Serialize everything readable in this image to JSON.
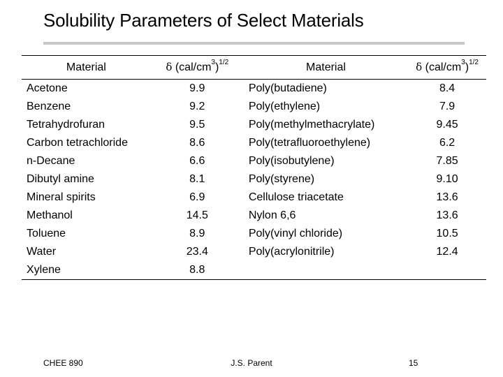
{
  "slide": {
    "title": "Solubility Parameters of Select Materials"
  },
  "table": {
    "headers": {
      "material": "Material",
      "delta_symbol": "δ",
      "units": "(cal/cm",
      "units_exp": "3",
      "units_close": ")",
      "units_power": "1/2"
    },
    "rows": [
      {
        "solvent": "Acetone",
        "solvent_delta": "9.9",
        "polymer": "Poly(butadiene)",
        "polymer_delta": "8.4"
      },
      {
        "solvent": "Benzene",
        "solvent_delta": "9.2",
        "polymer": "Poly(ethylene)",
        "polymer_delta": "7.9"
      },
      {
        "solvent": "Tetrahydrofuran",
        "solvent_delta": "9.5",
        "polymer": "Poly(methylmethacrylate)",
        "polymer_delta": "9.45"
      },
      {
        "solvent": "Carbon tetrachloride",
        "solvent_delta": "8.6",
        "polymer": "Poly(tetrafluoroethylene)",
        "polymer_delta": "6.2"
      },
      {
        "solvent": "n-Decane",
        "solvent_delta": "6.6",
        "polymer": "Poly(isobutylene)",
        "polymer_delta": "7.85"
      },
      {
        "solvent": "Dibutyl amine",
        "solvent_delta": "8.1",
        "polymer": "Poly(styrene)",
        "polymer_delta": "9.10"
      },
      {
        "solvent": "Mineral spirits",
        "solvent_delta": "6.9",
        "polymer": "Cellulose triacetate",
        "polymer_delta": "13.6"
      },
      {
        "solvent": "Methanol",
        "solvent_delta": "14.5",
        "polymer": "Nylon 6,6",
        "polymer_delta": "13.6"
      },
      {
        "solvent": "Toluene",
        "solvent_delta": "8.9",
        "polymer": "Poly(vinyl chloride)",
        "polymer_delta": "10.5"
      },
      {
        "solvent": "Water",
        "solvent_delta": "23.4",
        "polymer": "Poly(acrylonitrile)",
        "polymer_delta": "12.4"
      },
      {
        "solvent": "Xylene",
        "solvent_delta": "8.8",
        "polymer": "",
        "polymer_delta": ""
      }
    ]
  },
  "footer": {
    "course": "CHEE 890",
    "author": "J.S. Parent",
    "page": "15"
  }
}
